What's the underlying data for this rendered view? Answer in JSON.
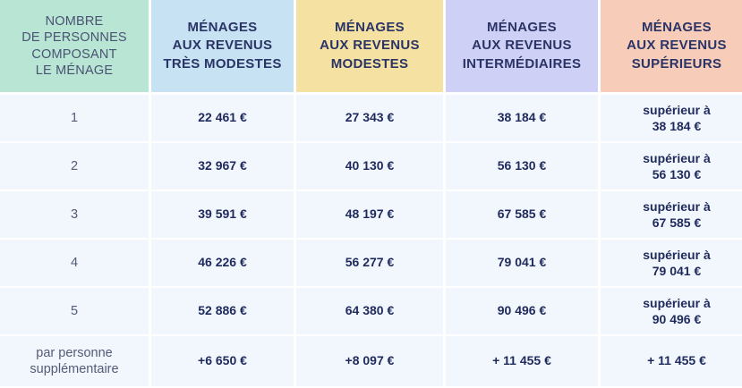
{
  "headers": {
    "persons": [
      "NOMBRE",
      "DE PERSONNES",
      "COMPOSANT",
      "LE MÉNAGE"
    ],
    "tres_modestes": [
      "MÉNAGES",
      "AUX REVENUS",
      "TRÈS MODESTES"
    ],
    "modestes": [
      "MÉNAGES",
      "AUX REVENUS",
      "MODESTES"
    ],
    "intermediaires": [
      "MÉNAGES",
      "AUX REVENUS",
      "INTERMÉDIAIRES"
    ],
    "superieurs": [
      "MÉNAGES",
      "AUX REVENUS",
      "SUPÉRIEURS"
    ]
  },
  "colors": {
    "persons_header": "#b9e6d4",
    "tres_modestes_header": "#c7e2f2",
    "modestes_header": "#f5e1a2",
    "intermediaires_header": "#cfd0f6",
    "superieurs_header": "#f7ccb8",
    "body_background": "#f1f7fd",
    "text": "#1f2a5c"
  },
  "rows": [
    {
      "persons": [
        "1"
      ],
      "tres_modestes": "22 461 €",
      "modestes": "27 343 €",
      "intermediaires": "38 184 €",
      "superieurs": [
        "supérieur à",
        "38 184 €"
      ]
    },
    {
      "persons": [
        "2"
      ],
      "tres_modestes": "32 967 €",
      "modestes": "40 130 €",
      "intermediaires": "56 130 €",
      "superieurs": [
        "supérieur à",
        "56 130 €"
      ]
    },
    {
      "persons": [
        "3"
      ],
      "tres_modestes": "39 591 €",
      "modestes": "48 197 €",
      "intermediaires": "67 585 €",
      "superieurs": [
        "supérieur à",
        "67 585 €"
      ]
    },
    {
      "persons": [
        "4"
      ],
      "tres_modestes": "46 226 €",
      "modestes": "56 277 €",
      "intermediaires": "79 041 €",
      "superieurs": [
        "supérieur à",
        "79 041 €"
      ]
    },
    {
      "persons": [
        "5"
      ],
      "tres_modestes": "52 886 €",
      "modestes": "64 380 €",
      "intermediaires": "90 496 €",
      "superieurs": [
        "supérieur à",
        "90 496 €"
      ]
    },
    {
      "persons": [
        "par personne",
        "supplémentaire"
      ],
      "tres_modestes": "+6 650 €",
      "modestes": "+8 097 €",
      "intermediaires": "+ 11 455 €",
      "superieurs": [
        "+ 11 455 €"
      ]
    }
  ]
}
